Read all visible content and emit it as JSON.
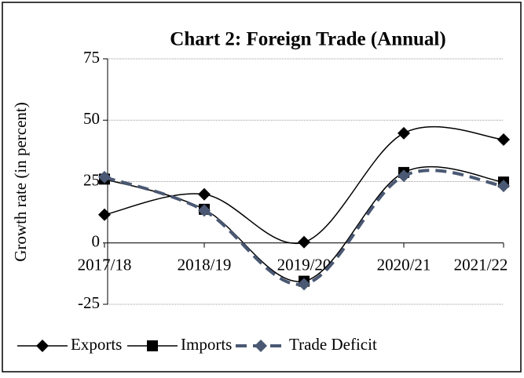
{
  "chart_data": {
    "type": "line",
    "title": "Chart 2: Foreign Trade (Annual)",
    "y_label": "Growth rate (in percent)",
    "categories": [
      "2017/18",
      "2018/19",
      "2019/20",
      "2020/21",
      "2021/22"
    ],
    "series": [
      {
        "name": "Exports",
        "color": "#000000",
        "marker": "diamond",
        "dashed": false,
        "values": [
          11.5,
          19.8,
          0.3,
          44.7,
          42.1
        ]
      },
      {
        "name": "Imports",
        "color": "#000000",
        "marker": "square",
        "dashed": false,
        "values": [
          26,
          13.7,
          -15.6,
          28.7,
          24.8
        ]
      },
      {
        "name": "Trade Deficit",
        "color": "#4a5873",
        "marker": "diamond",
        "dashed": true,
        "values": [
          26.8,
          13.2,
          -16.8,
          27.3,
          23.2
        ]
      }
    ],
    "ylim": [
      -25,
      75
    ],
    "yticks": [
      -25,
      0,
      25,
      50,
      75
    ],
    "grid": true,
    "legend": "bottom"
  }
}
